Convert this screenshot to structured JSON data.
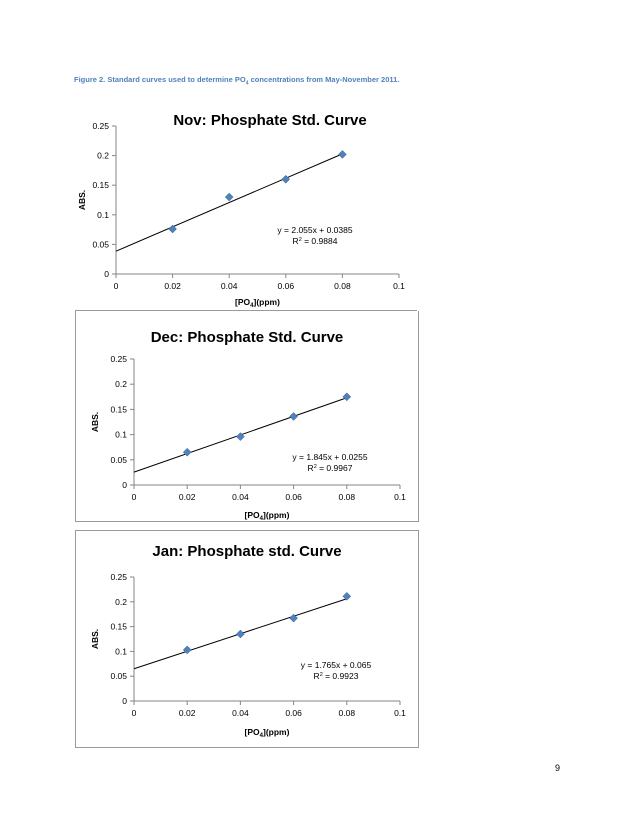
{
  "caption": {
    "prefix": "Figure 2. Standard curves used to determine PO",
    "subscript": "4",
    "suffix": " concentrations from May-November 2011."
  },
  "page_number": "9",
  "chart_data": [
    {
      "type": "scatter",
      "title": "Nov: Phosphate Std. Curve",
      "xlabel_main": "[PO",
      "xlabel_sub": "4",
      "xlabel_tail": "](ppm)",
      "ylabel": "ABS.",
      "xlim": [
        0,
        0.1
      ],
      "ylim": [
        0,
        0.25
      ],
      "x_ticks": [
        "0",
        "0.02",
        "0.04",
        "0.06",
        "0.08",
        "0.1"
      ],
      "y_ticks": [
        "0",
        "0.05",
        "0.1",
        "0.15",
        "0.2",
        "0.25"
      ],
      "x": [
        0.02,
        0.04,
        0.06,
        0.08
      ],
      "y": [
        0.076,
        0.13,
        0.16,
        0.202
      ],
      "trendline": {
        "slope": 2.055,
        "intercept": 0.0385,
        "x_range": [
          0,
          0.08
        ]
      },
      "equation": "y = 2.055x + 0.0385",
      "r2_label": "R",
      "r2_sup": "2",
      "r2_value": " = 0.9884",
      "marker_color": "#4f81bd"
    },
    {
      "type": "scatter",
      "title": "Dec: Phosphate Std. Curve",
      "xlabel_main": "[PO",
      "xlabel_sub": "4",
      "xlabel_tail": "](ppm)",
      "ylabel": "ABS.",
      "xlim": [
        0,
        0.1
      ],
      "ylim": [
        0,
        0.25
      ],
      "x_ticks": [
        "0",
        "0.02",
        "0.04",
        "0.06",
        "0.08",
        "0.1"
      ],
      "y_ticks": [
        "0",
        "0.05",
        "0.1",
        "0.15",
        "0.2",
        "0.25"
      ],
      "x": [
        0.02,
        0.04,
        0.06,
        0.08
      ],
      "y": [
        0.065,
        0.096,
        0.136,
        0.175
      ],
      "trendline": {
        "slope": 1.845,
        "intercept": 0.0255,
        "x_range": [
          0,
          0.08
        ]
      },
      "equation": "y = 1.845x + 0.0255",
      "r2_label": "R",
      "r2_sup": "2",
      "r2_value": " = 0.9967",
      "marker_color": "#4f81bd"
    },
    {
      "type": "scatter",
      "title": "Jan: Phosphate std. Curve",
      "xlabel_main": "[PO",
      "xlabel_sub": "4",
      "xlabel_tail": "](ppm)",
      "ylabel": "ABS.",
      "xlim": [
        0,
        0.1
      ],
      "ylim": [
        0,
        0.25
      ],
      "x_ticks": [
        "0",
        "0.02",
        "0.04",
        "0.06",
        "0.08",
        "0.1"
      ],
      "y_ticks": [
        "0",
        "0.05",
        "0.1",
        "0.15",
        "0.2",
        "0.25"
      ],
      "x": [
        0.02,
        0.04,
        0.06,
        0.08
      ],
      "y": [
        0.103,
        0.135,
        0.167,
        0.211
      ],
      "trendline": {
        "slope": 1.765,
        "intercept": 0.065,
        "x_range": [
          0,
          0.08
        ]
      },
      "equation": "y = 1.765x + 0.065",
      "r2_label": "R",
      "r2_sup": "2",
      "r2_value": " = 0.9923",
      "marker_color": "#4f81bd"
    }
  ]
}
